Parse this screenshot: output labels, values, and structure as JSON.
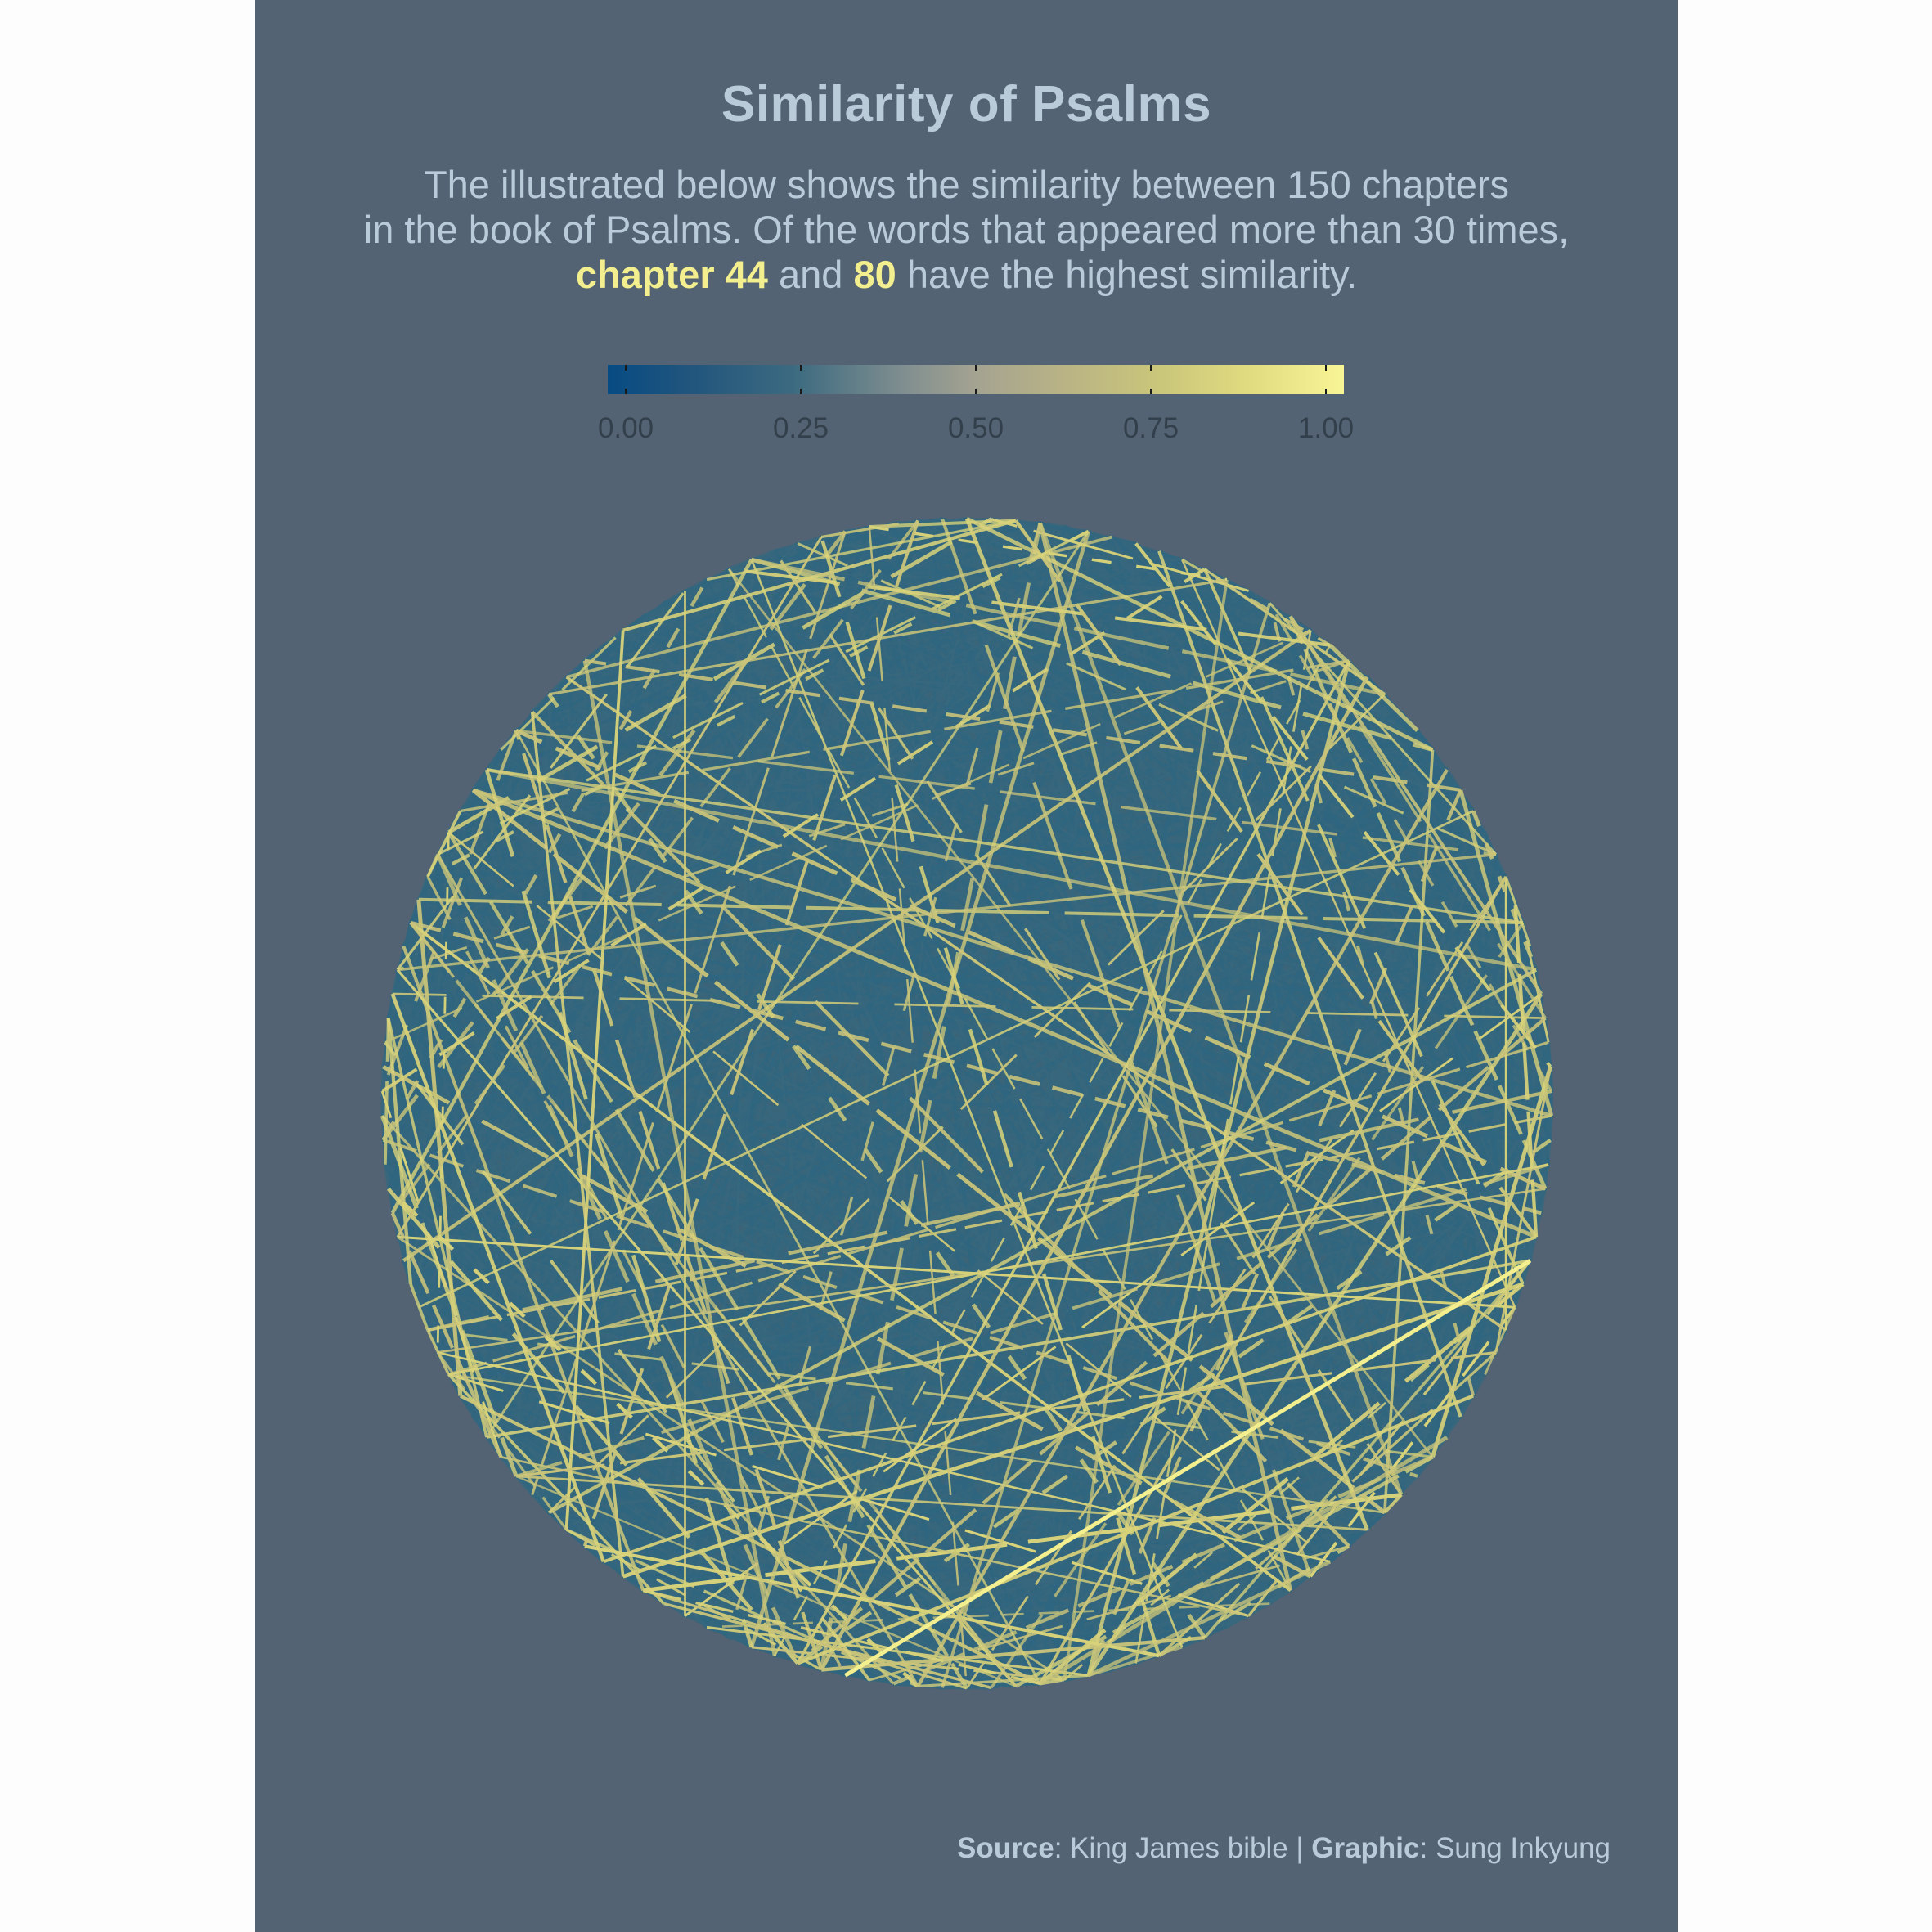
{
  "title": "Similarity of Psalms",
  "subtitle": {
    "line1": "The illustrated below shows the similarity between 150 chapters",
    "line2": "in the book of Psalms. Of the words that appeared more than 30 times,",
    "line3_hl1": "chapter 44",
    "line3_mid": " and ",
    "line3_hl2": "80",
    "line3_end": " have the highest similarity."
  },
  "caption": {
    "source_label": "Source",
    "source_text": ": King James bible | ",
    "graphic_label": "Graphic",
    "graphic_text": ": Sung Inkyung"
  },
  "colors": {
    "background": "#536373",
    "low": "#2f6680",
    "high": "#d8d27a",
    "text": "#b9cad9",
    "highlight": "#f3ee8e"
  },
  "chart_data": {
    "type": "network",
    "layout": "circular",
    "node_count": 150,
    "metric": "similarity",
    "legend": {
      "title": "",
      "range": [
        0,
        1
      ],
      "ticks": [
        0.0,
        0.25,
        0.5,
        0.75,
        1.0
      ],
      "tick_labels": [
        "0.00",
        "0.25",
        "0.50",
        "0.75",
        "1.00"
      ],
      "placement": "top"
    },
    "highest_similarity_pair": [
      44,
      80
    ],
    "highlighted_edges": [
      {
        "from": 44,
        "to": 80,
        "similarity": 1.0
      }
    ],
    "notes": "Edges between all chapter pairs; most have low similarity (blue), a minority high (yellow)."
  }
}
